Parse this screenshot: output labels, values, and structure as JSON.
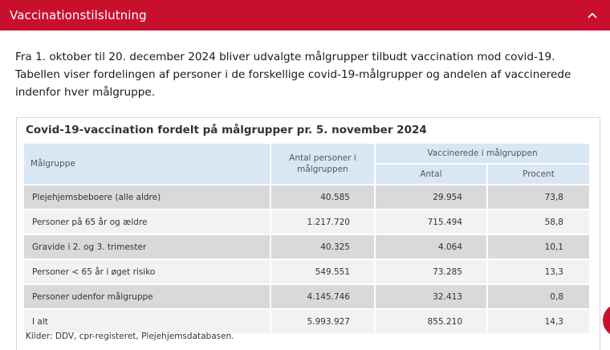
{
  "accordion": {
    "title": "Vaccinationstilslutning",
    "chevron_icon": "chevron-up-icon",
    "color": "#c8102e"
  },
  "intro": {
    "text": "Fra 1. oktober til 20. december 2024 bliver udvalgte målgrupper tilbudt vaccination mod covid-19. Tabellen viser fordelingen af personer i de forskellige covid-19-målgrupper og andelen af vaccinerede indenfor hver målgruppe."
  },
  "table": {
    "caption": "Covid-19-vaccination fordelt på målgrupper pr. 5. november 2024",
    "headers": {
      "group": "Målgruppe",
      "count": "Antal personer i målgruppen",
      "vaccinated": "Vaccinerede i målgruppen",
      "number": "Antal",
      "percent": "Procent"
    },
    "rows": [
      {
        "group": "Plejehjemsbeboere (alle aldre)",
        "count": "40.585",
        "number": "29.954",
        "percent": "73,8"
      },
      {
        "group": "Personer på 65 år og ældre",
        "count": "1.217.720",
        "number": "715.494",
        "percent": "58,8"
      },
      {
        "group": "Gravide i 2. og 3. trimester",
        "count": "40.325",
        "number": "4.064",
        "percent": "10,1"
      },
      {
        "group": "Personer < 65 år i øget risiko",
        "count": "549.551",
        "number": "73.285",
        "percent": "13,3"
      },
      {
        "group": "Personer udenfor målgruppe",
        "count": "4.145.746",
        "number": "32.413",
        "percent": "0,8"
      },
      {
        "group": "I alt",
        "count": "5.993.927",
        "number": "855.210",
        "percent": "14,3"
      }
    ],
    "sources": "Kilder: DDV, cpr-registeret, Plejehjemsdatabasen."
  }
}
